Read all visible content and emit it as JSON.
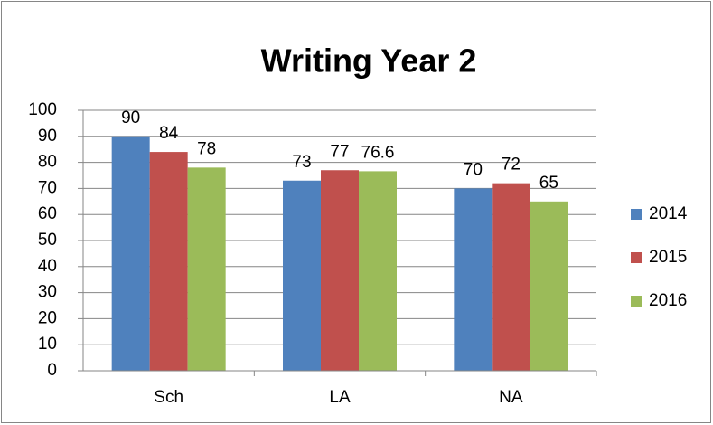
{
  "chart_data": {
    "type": "bar",
    "title": "Writing Year 2",
    "categories": [
      "Sch",
      "LA",
      "NA"
    ],
    "series": [
      {
        "name": "2014",
        "color": "#4f81bd",
        "values": [
          90,
          73,
          70
        ]
      },
      {
        "name": "2015",
        "color": "#c0504d",
        "values": [
          84,
          77,
          72
        ]
      },
      {
        "name": "2016",
        "color": "#9bbb59",
        "values": [
          78,
          76.6,
          65
        ]
      }
    ],
    "ylim": [
      0,
      100
    ],
    "yticks": [
      0,
      10,
      20,
      30,
      40,
      50,
      60,
      70,
      80,
      90,
      100
    ],
    "grid": true,
    "legend": "right"
  }
}
